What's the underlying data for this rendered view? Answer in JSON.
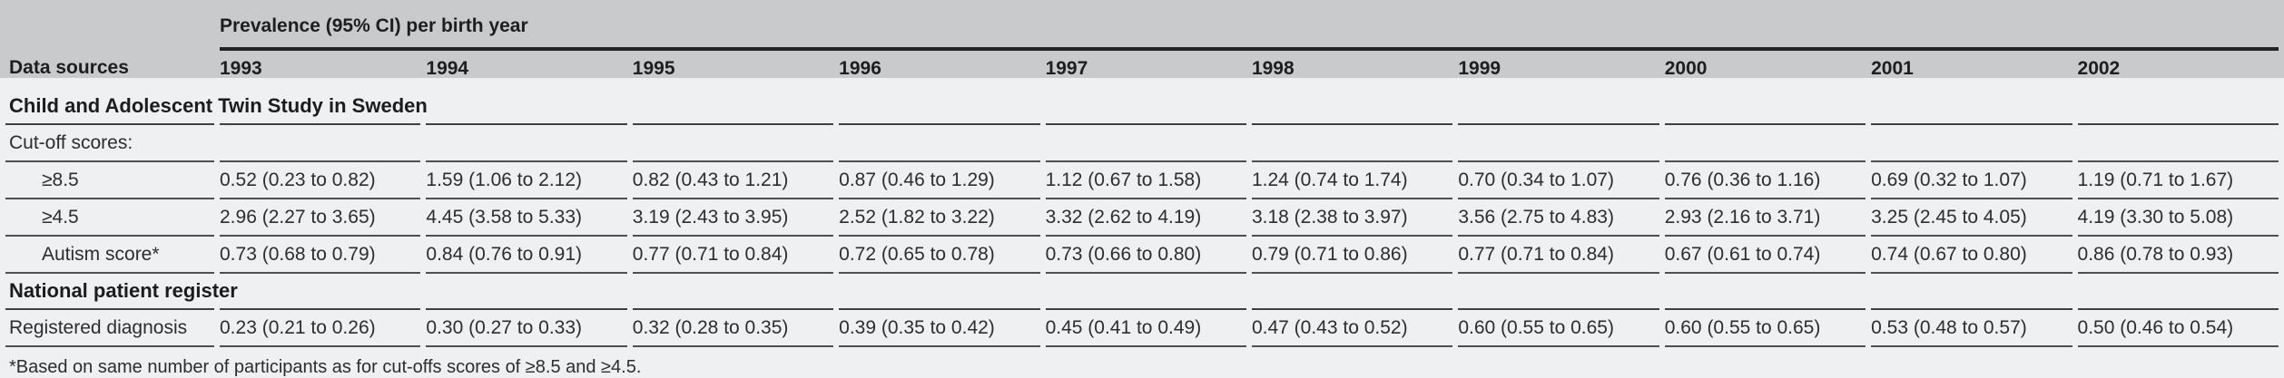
{
  "table": {
    "row_header_label": "Data sources",
    "group_header": "Prevalence (95% CI) per birth year",
    "years": [
      "1993",
      "1994",
      "1995",
      "1996",
      "1997",
      "1998",
      "1999",
      "2000",
      "2001",
      "2002"
    ],
    "sections": [
      {
        "title": "Child and Adolescent Twin Study in Sweden",
        "rows": [
          {
            "label": "Cut-off scores:",
            "indent": false,
            "values": [
              "",
              "",
              "",
              "",
              "",
              "",
              "",
              "",
              "",
              ""
            ]
          },
          {
            "label": "≥8.5",
            "indent": true,
            "values": [
              "0.52 (0.23 to 0.82)",
              "1.59 (1.06 to 2.12)",
              "0.82 (0.43 to 1.21)",
              "0.87 (0.46 to 1.29)",
              "1.12 (0.67 to 1.58)",
              "1.24 (0.74 to 1.74)",
              "0.70 (0.34 to 1.07)",
              "0.76 (0.36 to 1.16)",
              "0.69 (0.32 to 1.07)",
              "1.19 (0.71 to 1.67)"
            ]
          },
          {
            "label": "≥4.5",
            "indent": true,
            "values": [
              "2.96 (2.27 to 3.65)",
              "4.45 (3.58 to 5.33)",
              "3.19 (2.43 to 3.95)",
              "2.52 (1.82 to 3.22)",
              "3.32 (2.62 to 4.19)",
              "3.18 (2.38 to 3.97)",
              "3.56 (2.75 to 4.83)",
              "2.93 (2.16 to 3.71)",
              "3.25 (2.45 to 4.05)",
              "4.19 (3.30 to 5.08)"
            ]
          },
          {
            "label": "Autism score*",
            "indent": true,
            "values": [
              "0.73 (0.68 to 0.79)",
              "0.84 (0.76 to 0.91)",
              "0.77 (0.71 to 0.84)",
              "0.72 (0.65 to 0.78)",
              "0.73 (0.66 to 0.80)",
              "0.79 (0.71 to 0.86)",
              "0.77 (0.71 to 0.84)",
              "0.67 (0.61 to 0.74)",
              "0.74 (0.67 to 0.80)",
              "0.86 (0.78 to 0.93)"
            ]
          }
        ]
      },
      {
        "title": "National patient register",
        "rows": [
          {
            "label": "Registered diagnosis",
            "indent": false,
            "values": [
              "0.23 (0.21 to 0.26)",
              "0.30 (0.27 to 0.33)",
              "0.32 (0.28 to 0.35)",
              "0.39 (0.35 to 0.42)",
              "0.45 (0.41 to 0.49)",
              "0.47 (0.43 to 0.52)",
              "0.60 (0.55 to 0.65)",
              "0.60 (0.55 to 0.65)",
              "0.53 (0.48 to 0.57)",
              "0.50 (0.46 to 0.54)"
            ]
          }
        ]
      }
    ],
    "footnote": "*Based on same number of participants as for cut-offs scores of ≥8.5 and ≥4.5."
  },
  "colors": {
    "header_band": "#c9cacb",
    "body_background": "#eef0f2",
    "heavy_rule": "#232325",
    "row_rule": "#4e4f53",
    "text": "#2c2d2f"
  }
}
